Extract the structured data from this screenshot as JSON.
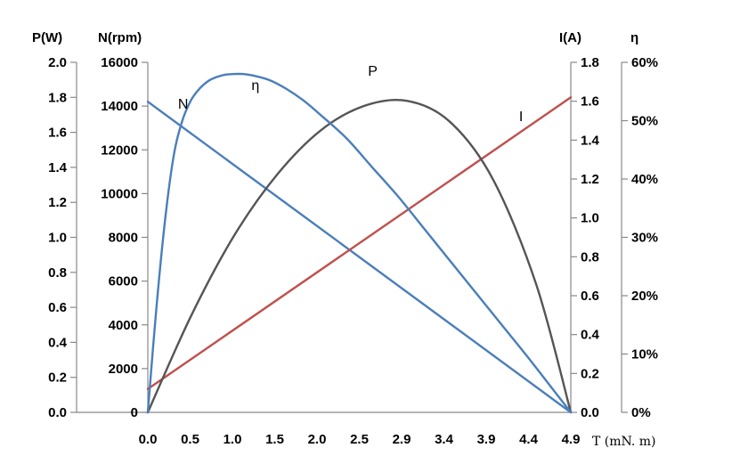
{
  "chart_data": {
    "type": "line",
    "xlabel": "T (mN. m)",
    "x_ticks": [
      "0.0",
      "0.5",
      "1.0",
      "1.5",
      "2.0",
      "2.5",
      "2.9",
      "3.4",
      "3.9",
      "4.4",
      "4.9"
    ],
    "x_range": [
      0,
      4.9
    ],
    "axes": {
      "P": {
        "label": "P(W)",
        "range": [
          0,
          2.0
        ],
        "ticks": [
          "0.0",
          "0.2",
          "0.4",
          "0.6",
          "0.8",
          "1.0",
          "1.2",
          "1.4",
          "1.6",
          "1.8",
          "2.0"
        ]
      },
      "N": {
        "label": "N(rpm)",
        "range": [
          0,
          16000
        ],
        "ticks": [
          "0",
          "2000",
          "4000",
          "6000",
          "8000",
          "10000",
          "12000",
          "14000",
          "16000"
        ]
      },
      "I": {
        "label": "I(A)",
        "range": [
          0,
          1.8
        ],
        "ticks": [
          "0.0",
          "0.2",
          "0.4",
          "0.6",
          "0.8",
          "1.0",
          "1.2",
          "1.4",
          "1.6",
          "1.8"
        ]
      },
      "eta": {
        "label": "η",
        "range": [
          0,
          60
        ],
        "ticks": [
          "0%",
          "10%",
          "20%",
          "30%",
          "40%",
          "50%",
          "60%"
        ]
      }
    },
    "series": [
      {
        "name": "N",
        "axis": "N",
        "color": "#4a7ebb",
        "x": [
          0,
          4.9
        ],
        "y": [
          14200,
          0
        ]
      },
      {
        "name": "I",
        "axis": "I",
        "color": "#c0504d",
        "x": [
          0,
          4.9
        ],
        "y": [
          0.12,
          1.62
        ]
      },
      {
        "name": "P",
        "axis": "P",
        "color": "#555555",
        "x": [
          0,
          0.5,
          1.0,
          1.5,
          2.0,
          2.5,
          3.0,
          3.5,
          4.0,
          4.5,
          4.9
        ],
        "y": [
          0,
          0.55,
          1.01,
          1.36,
          1.61,
          1.75,
          1.78,
          1.66,
          1.33,
          0.73,
          0
        ]
      },
      {
        "name": "η",
        "axis": "eta",
        "color": "#4a7ebb",
        "x": [
          0,
          0.1,
          0.2,
          0.3,
          0.4,
          0.5,
          0.6,
          0.7,
          0.8,
          0.9,
          1.0,
          1.1,
          1.2,
          1.4,
          1.6,
          1.8,
          2.0,
          2.3,
          2.6,
          2.9,
          3.2,
          3.5,
          3.8,
          4.1,
          4.4,
          4.7,
          4.9
        ],
        "y": [
          0,
          18,
          33,
          44,
          50,
          53.5,
          55.5,
          56.8,
          57.5,
          57.9,
          58.0,
          58.0,
          57.8,
          57,
          55.5,
          53.5,
          51,
          47,
          42,
          37,
          31.5,
          26,
          20.5,
          15,
          9.5,
          3.8,
          0
        ]
      }
    ],
    "curve_labels": {
      "N": "N",
      "I": "I",
      "P": "P",
      "eta": "η"
    },
    "legend": "none",
    "grid": false
  }
}
